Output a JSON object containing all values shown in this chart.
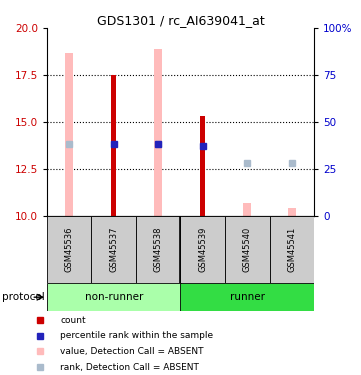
{
  "title": "GDS1301 / rc_AI639041_at",
  "samples": [
    "GSM45536",
    "GSM45537",
    "GSM45538",
    "GSM45539",
    "GSM45540",
    "GSM45541"
  ],
  "ylim": [
    10,
    20
  ],
  "ylim_right": [
    0,
    100
  ],
  "yticks_left": [
    10,
    12.5,
    15,
    17.5,
    20
  ],
  "yticks_right": [
    0,
    25,
    50,
    75,
    100
  ],
  "ytick_labels_right": [
    "0",
    "25",
    "50",
    "75",
    "100%"
  ],
  "value_absent": [
    18.7,
    null,
    18.9,
    null,
    10.7,
    10.4
  ],
  "rank_absent": [
    13.8,
    null,
    13.8,
    null,
    12.8,
    12.8
  ],
  "count_top": [
    null,
    17.5,
    null,
    15.3,
    null,
    null
  ],
  "percentile_rank": [
    null,
    13.8,
    13.8,
    13.7,
    null,
    null
  ],
  "bar_color_red": "#cc0000",
  "bar_color_pink": "#ffbbbb",
  "dot_color_blue": "#2222bb",
  "dot_color_lightblue": "#aabbcc",
  "group_nonrunner_color": "#aaffaa",
  "group_runner_color": "#33dd44",
  "axis_left_color": "#cc0000",
  "axis_right_color": "#0000cc",
  "sample_bg_color": "#cccccc",
  "legend_entries": [
    "count",
    "percentile rank within the sample",
    "value, Detection Call = ABSENT",
    "rank, Detection Call = ABSENT"
  ],
  "legend_colors": [
    "#cc0000",
    "#2222bb",
    "#ffbbbb",
    "#aabbcc"
  ],
  "legend_markers": [
    "s",
    "s",
    "s",
    "s"
  ]
}
